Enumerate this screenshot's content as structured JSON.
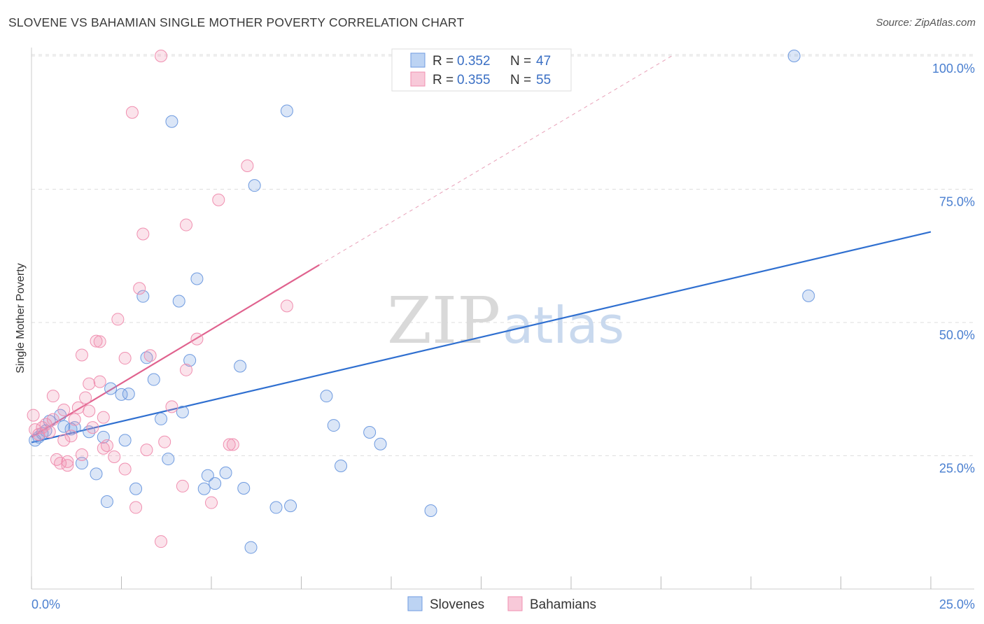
{
  "header": {
    "title": "SLOVENE VS BAHAMIAN SINGLE MOTHER POVERTY CORRELATION CHART",
    "source": "Source: ZipAtlas.com"
  },
  "watermark": {
    "zip": "ZIP",
    "atlas": "atlas"
  },
  "legend": {
    "r_label": "R =",
    "n_label": "N =",
    "rows": [
      {
        "r": "0.352",
        "n": "47",
        "color": "#6f9be0"
      },
      {
        "r": "0.355",
        "n": "55",
        "color": "#f08fb0"
      }
    ]
  },
  "chart_data": {
    "type": "scatter",
    "title": "SLOVENE VS BAHAMIAN SINGLE MOTHER POVERTY CORRELATION CHART",
    "xlabel": "",
    "ylabel": "Single Mother Poverty",
    "xlim": [
      0,
      25
    ],
    "ylim": [
      0,
      100
    ],
    "x_tick_labels": [
      "0.0%",
      "25.0%"
    ],
    "y_tick_labels": [
      "25.0%",
      "50.0%",
      "75.0%",
      "100.0%"
    ],
    "y_ticks": [
      25,
      50,
      75,
      100
    ],
    "grid": true,
    "legend_position": "top-center",
    "series": [
      {
        "name": "Slovenes",
        "color": "#6f9be0",
        "r": 0.352,
        "n": 47,
        "trend": {
          "x": [
            0,
            25
          ],
          "y": [
            27.5,
            67
          ]
        },
        "points": [
          [
            0.1,
            27.9
          ],
          [
            0.2,
            28.5
          ],
          [
            0.3,
            29.2
          ],
          [
            0.4,
            29.7
          ],
          [
            0.5,
            31.5
          ],
          [
            0.8,
            32.6
          ],
          [
            0.9,
            30.5
          ],
          [
            1.1,
            30.0
          ],
          [
            1.2,
            30.3
          ],
          [
            1.4,
            23.6
          ],
          [
            1.6,
            29.5
          ],
          [
            1.8,
            21.6
          ],
          [
            2.0,
            28.5
          ],
          [
            2.1,
            16.4
          ],
          [
            2.2,
            37.6
          ],
          [
            2.5,
            36.5
          ],
          [
            2.6,
            27.9
          ],
          [
            2.7,
            36.6
          ],
          [
            2.9,
            18.8
          ],
          [
            3.1,
            54.9
          ],
          [
            3.2,
            43.4
          ],
          [
            3.4,
            39.3
          ],
          [
            3.6,
            31.9
          ],
          [
            3.8,
            24.4
          ],
          [
            3.9,
            87.7
          ],
          [
            4.1,
            54.0
          ],
          [
            4.2,
            33.2
          ],
          [
            4.4,
            42.9
          ],
          [
            4.6,
            58.2
          ],
          [
            4.8,
            18.8
          ],
          [
            4.9,
            21.3
          ],
          [
            5.1,
            19.8
          ],
          [
            5.4,
            21.8
          ],
          [
            5.8,
            41.8
          ],
          [
            5.9,
            18.9
          ],
          [
            6.2,
            75.7
          ],
          [
            6.1,
            7.8
          ],
          [
            6.8,
            15.3
          ],
          [
            7.1,
            89.7
          ],
          [
            7.2,
            15.6
          ],
          [
            8.2,
            36.2
          ],
          [
            8.4,
            30.7
          ],
          [
            8.6,
            23.1
          ],
          [
            9.4,
            29.4
          ],
          [
            9.7,
            27.2
          ],
          [
            11.1,
            14.7
          ],
          [
            21.2,
            100.0
          ],
          [
            21.6,
            55.0
          ]
        ]
      },
      {
        "name": "Bahamians",
        "color": "#f08fb0",
        "r": 0.355,
        "n": 55,
        "trend": {
          "x": [
            0,
            8.0
          ],
          "y": [
            28.5,
            60.8
          ]
        },
        "trend_dashed": {
          "x": [
            8.0,
            17.8
          ],
          "y": [
            60.8,
            100
          ]
        },
        "points": [
          [
            0.05,
            32.6
          ],
          [
            0.1,
            29.9
          ],
          [
            0.2,
            29.0
          ],
          [
            0.3,
            30.3
          ],
          [
            0.4,
            30.9
          ],
          [
            0.5,
            29.5
          ],
          [
            0.6,
            31.8
          ],
          [
            0.7,
            24.3
          ],
          [
            0.6,
            36.2
          ],
          [
            0.8,
            23.6
          ],
          [
            0.9,
            27.9
          ],
          [
            0.9,
            33.6
          ],
          [
            1.0,
            23.2
          ],
          [
            1.1,
            28.7
          ],
          [
            1.2,
            31.8
          ],
          [
            1.0,
            23.9
          ],
          [
            1.3,
            34.0
          ],
          [
            1.4,
            43.9
          ],
          [
            1.4,
            25.2
          ],
          [
            1.5,
            35.9
          ],
          [
            1.6,
            33.4
          ],
          [
            1.6,
            38.5
          ],
          [
            1.7,
            30.3
          ],
          [
            1.8,
            46.5
          ],
          [
            1.9,
            38.9
          ],
          [
            1.9,
            46.4
          ],
          [
            2.0,
            26.4
          ],
          [
            2.0,
            32.2
          ],
          [
            2.1,
            26.9
          ],
          [
            2.3,
            24.8
          ],
          [
            2.4,
            50.6
          ],
          [
            2.6,
            43.3
          ],
          [
            2.6,
            22.5
          ],
          [
            2.8,
            89.4
          ],
          [
            2.9,
            15.3
          ],
          [
            3.0,
            56.4
          ],
          [
            3.1,
            66.6
          ],
          [
            3.2,
            26.1
          ],
          [
            3.3,
            43.8
          ],
          [
            3.6,
            100.0
          ],
          [
            3.6,
            8.9
          ],
          [
            3.7,
            27.6
          ],
          [
            3.9,
            34.2
          ],
          [
            4.2,
            19.3
          ],
          [
            4.3,
            41.1
          ],
          [
            4.3,
            68.3
          ],
          [
            4.6,
            46.9
          ],
          [
            5.0,
            16.2
          ],
          [
            5.2,
            73.0
          ],
          [
            5.5,
            27.1
          ],
          [
            5.6,
            27.1
          ],
          [
            6.0,
            79.4
          ],
          [
            7.1,
            53.1
          ]
        ]
      }
    ]
  }
}
